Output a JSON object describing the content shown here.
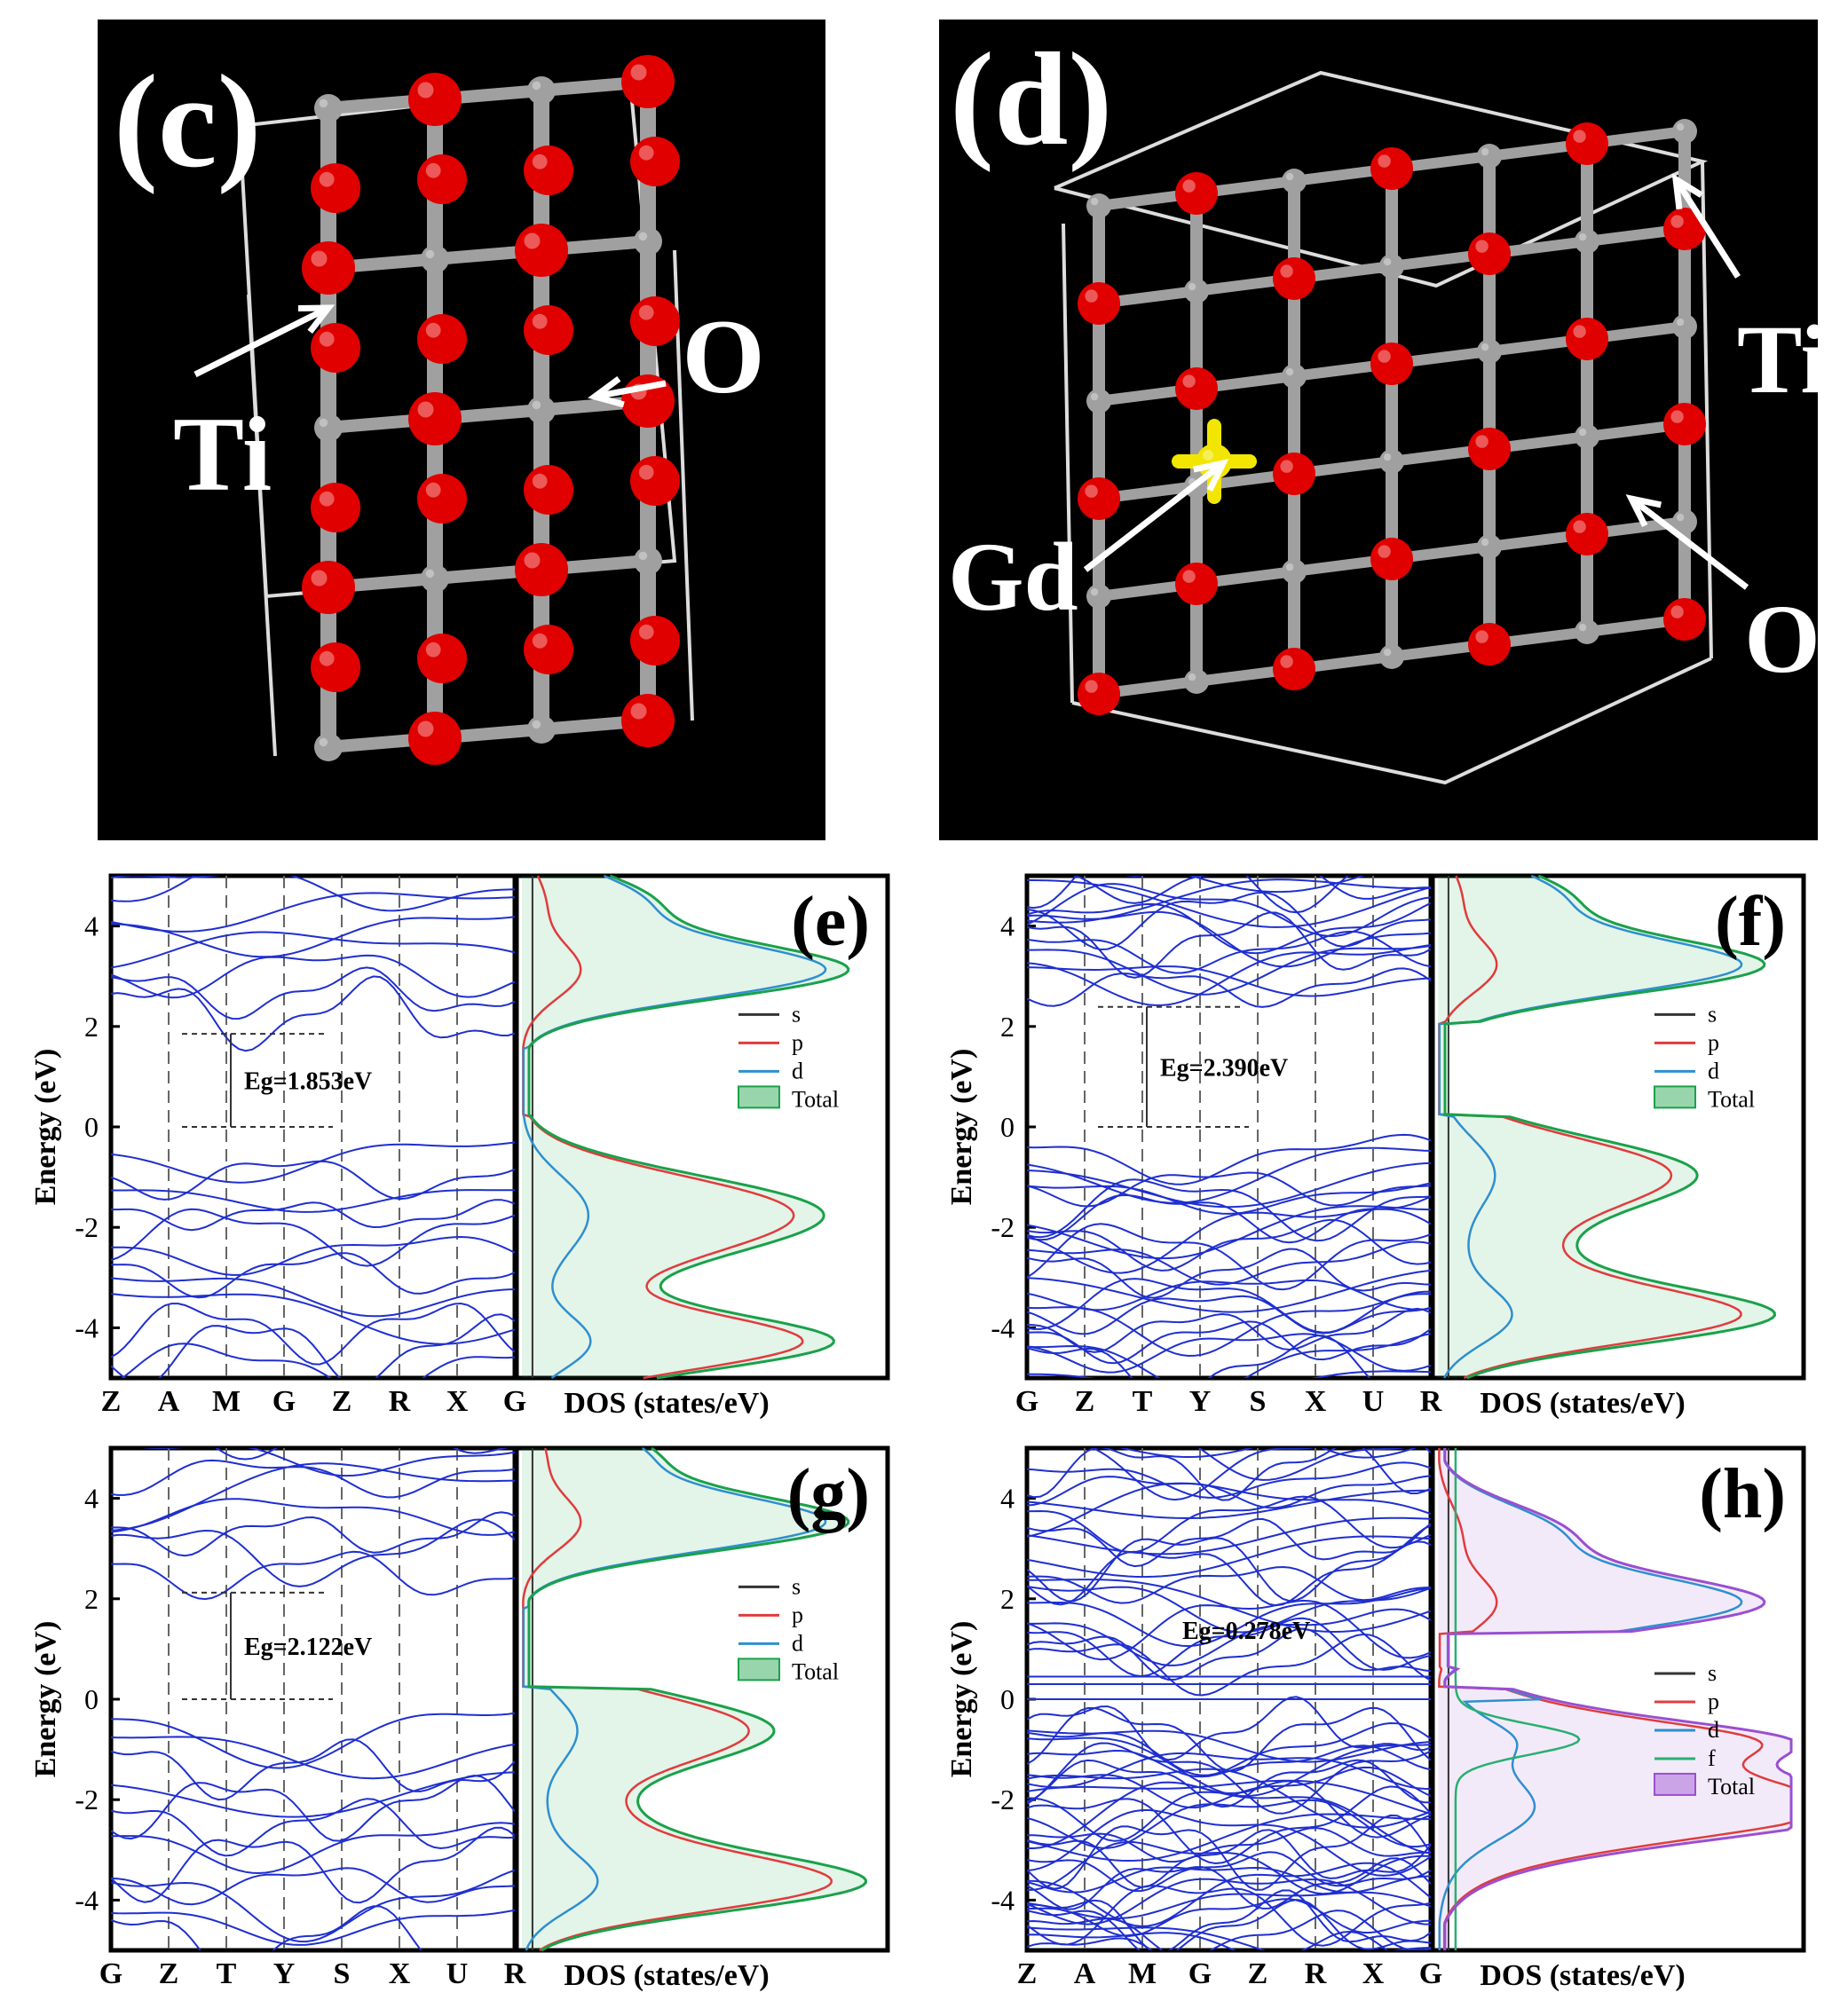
{
  "crystals": [
    {
      "id": "c",
      "panel_label": "(c)",
      "atoms": {
        "ti": "Ti",
        "o": "O"
      }
    },
    {
      "id": "d",
      "panel_label": "(d)",
      "atoms": {
        "ti": "Ti",
        "o": "O",
        "gd": "Gd"
      }
    }
  ],
  "colors": {
    "oxygen": "#e00000",
    "titanium": "#a0a0a0",
    "gadolinium": "#f2e600",
    "band_lines": "#1f2fd0",
    "s": "#333333",
    "p": "#e03c3c",
    "d": "#2f8fcf",
    "f": "#28b070",
    "total_green": "#1aa14a",
    "total_purple": "#9a4fd0"
  },
  "chart_data": [
    {
      "panel": "(e)",
      "type": "line",
      "band_structure": {
        "ylabel": "Energy  (eV)",
        "ylim": [
          -5,
          5
        ],
        "yticks": [
          -4,
          -2,
          0,
          2,
          4
        ],
        "kpoints": [
          "Z",
          "A",
          "M",
          "G",
          "Z",
          "R",
          "X",
          "G"
        ],
        "band_gap_label": "Eg=1.853eV",
        "band_gap": 1.853,
        "cbm": 1.853,
        "vbm": 0.0
      },
      "dos": {
        "xlabel": "DOS (states/eV)",
        "legend": [
          "s",
          "p",
          "d",
          "Total"
        ],
        "total_color": "green",
        "peaks": {
          "conduction": 3.1,
          "valence_upper": -1.6,
          "valence_lower": -4.3
        }
      }
    },
    {
      "panel": "(f)",
      "type": "line",
      "band_structure": {
        "ylabel": "Energy  (eV)",
        "ylim": [
          -5,
          5
        ],
        "yticks": [
          -4,
          -2,
          0,
          2,
          4
        ],
        "kpoints": [
          "G",
          "Z",
          "T",
          "Y",
          "S",
          "X",
          "U",
          "R"
        ],
        "band_gap_label": "Eg=2.390eV",
        "band_gap": 2.39,
        "cbm": 2.39,
        "vbm": 0.0
      },
      "dos": {
        "xlabel": "DOS (states/eV)",
        "legend": [
          "s",
          "p",
          "d",
          "Total"
        ],
        "total_color": "green",
        "peaks": {
          "conduction": 3.2,
          "valence_upper": -0.9,
          "valence_lower": -3.8
        }
      }
    },
    {
      "panel": "(g)",
      "type": "line",
      "band_structure": {
        "ylabel": "Energy  (eV)",
        "ylim": [
          -5,
          5
        ],
        "yticks": [
          -4,
          -2,
          0,
          2,
          4
        ],
        "kpoints": [
          "G",
          "Z",
          "T",
          "Y",
          "S",
          "X",
          "U",
          "R"
        ],
        "band_gap_label": "Eg=2.122eV",
        "band_gap": 2.122,
        "cbm": 2.122,
        "vbm": 0.0
      },
      "dos": {
        "xlabel": "DOS (states/eV)",
        "legend": [
          "s",
          "p",
          "d",
          "Total"
        ],
        "total_color": "green",
        "peaks": {
          "conduction": 3.5,
          "valence_upper": -0.6,
          "valence_lower": -3.7
        }
      }
    },
    {
      "panel": "(h)",
      "type": "line",
      "band_structure": {
        "ylabel": "Energy  (eV)",
        "ylim": [
          -5,
          5
        ],
        "yticks": [
          -4,
          -2,
          0,
          2,
          4
        ],
        "kpoints": [
          "Z",
          "A",
          "M",
          "G",
          "Z",
          "R",
          "X",
          "G"
        ],
        "band_gap_label": "Eg=0.278eV",
        "band_gap": 0.278,
        "cbm": 0.278,
        "vbm": 0.0
      },
      "dos": {
        "xlabel": "DOS (states/eV)",
        "legend": [
          "s",
          "p",
          "d",
          "f",
          "Total"
        ],
        "total_color": "purple",
        "peaks": {
          "conduction": 1.9,
          "valence_upper": -0.9,
          "valence_lower": -2.2
        }
      }
    }
  ]
}
